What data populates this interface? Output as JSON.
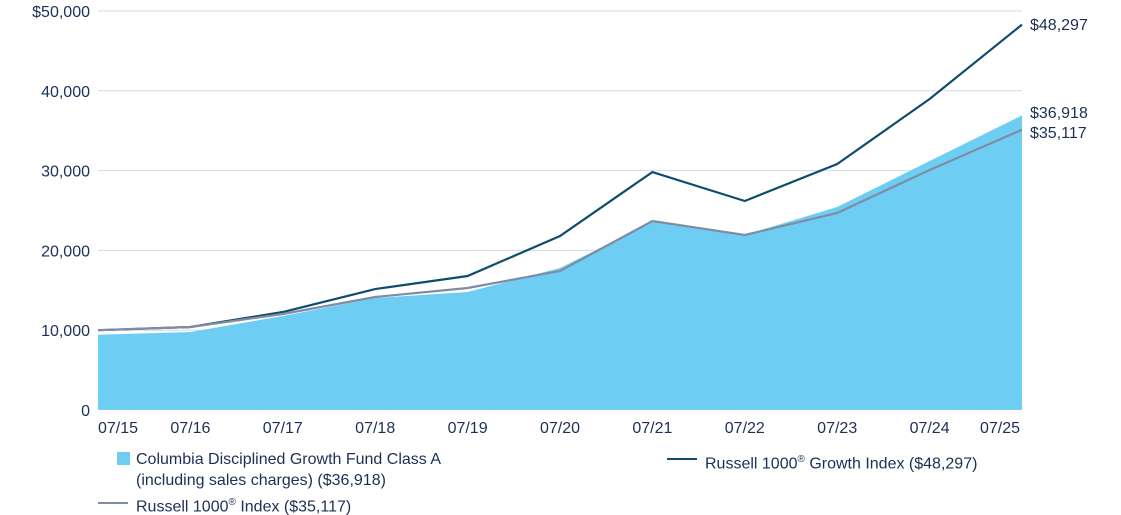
{
  "chart_data": {
    "type": "area",
    "categories": [
      "07/15",
      "07/16",
      "07/17",
      "07/18",
      "07/19",
      "07/20",
      "07/21",
      "07/22",
      "07/23",
      "07/24",
      "07/25"
    ],
    "ylim": [
      0,
      50000
    ],
    "yticks": [
      0,
      10000,
      20000,
      30000,
      40000,
      50000
    ],
    "ytick_labels": [
      "0",
      "10,000",
      "20,000",
      "30,000",
      "40,000",
      "$50,000"
    ],
    "grid": true,
    "legend_position": "bottom",
    "series": [
      {
        "name": "Columbia Disciplined Growth Fund Class A (including sales charges) ($36,918)",
        "legend_line1": "Columbia Disciplined Growth Fund Class A",
        "legend_line2": "(including sales charges) ($36,918)",
        "style": "area",
        "color": "#6dcdf2",
        "values": [
          9425,
          9770,
          11780,
          14040,
          14790,
          17790,
          23560,
          21930,
          25440,
          31200,
          36918
        ],
        "end_label": "$36,918"
      },
      {
        "name": "Russell 1000® Growth Index ($48,297)",
        "legend_prefix": "Russell 1000",
        "legend_suffix": " Growth Index ($48,297)",
        "style": "line",
        "color": "#0f4c6e",
        "values": [
          10000,
          10400,
          12280,
          15160,
          16790,
          21800,
          29820,
          26190,
          30830,
          38970,
          48297
        ],
        "end_label": "$48,297"
      },
      {
        "name": "Russell 1000® Index ($35,117)",
        "legend_prefix": "Russell 1000",
        "legend_suffix": " Index ($35,117)",
        "style": "line",
        "color": "#7f8ca4",
        "values": [
          10000,
          10400,
          12030,
          14160,
          15290,
          17420,
          23680,
          21930,
          24690,
          30080,
          35117
        ],
        "end_label": "$35,117"
      }
    ],
    "gridline_color": "#cfdbe8",
    "text_color": "#1c2f55"
  }
}
